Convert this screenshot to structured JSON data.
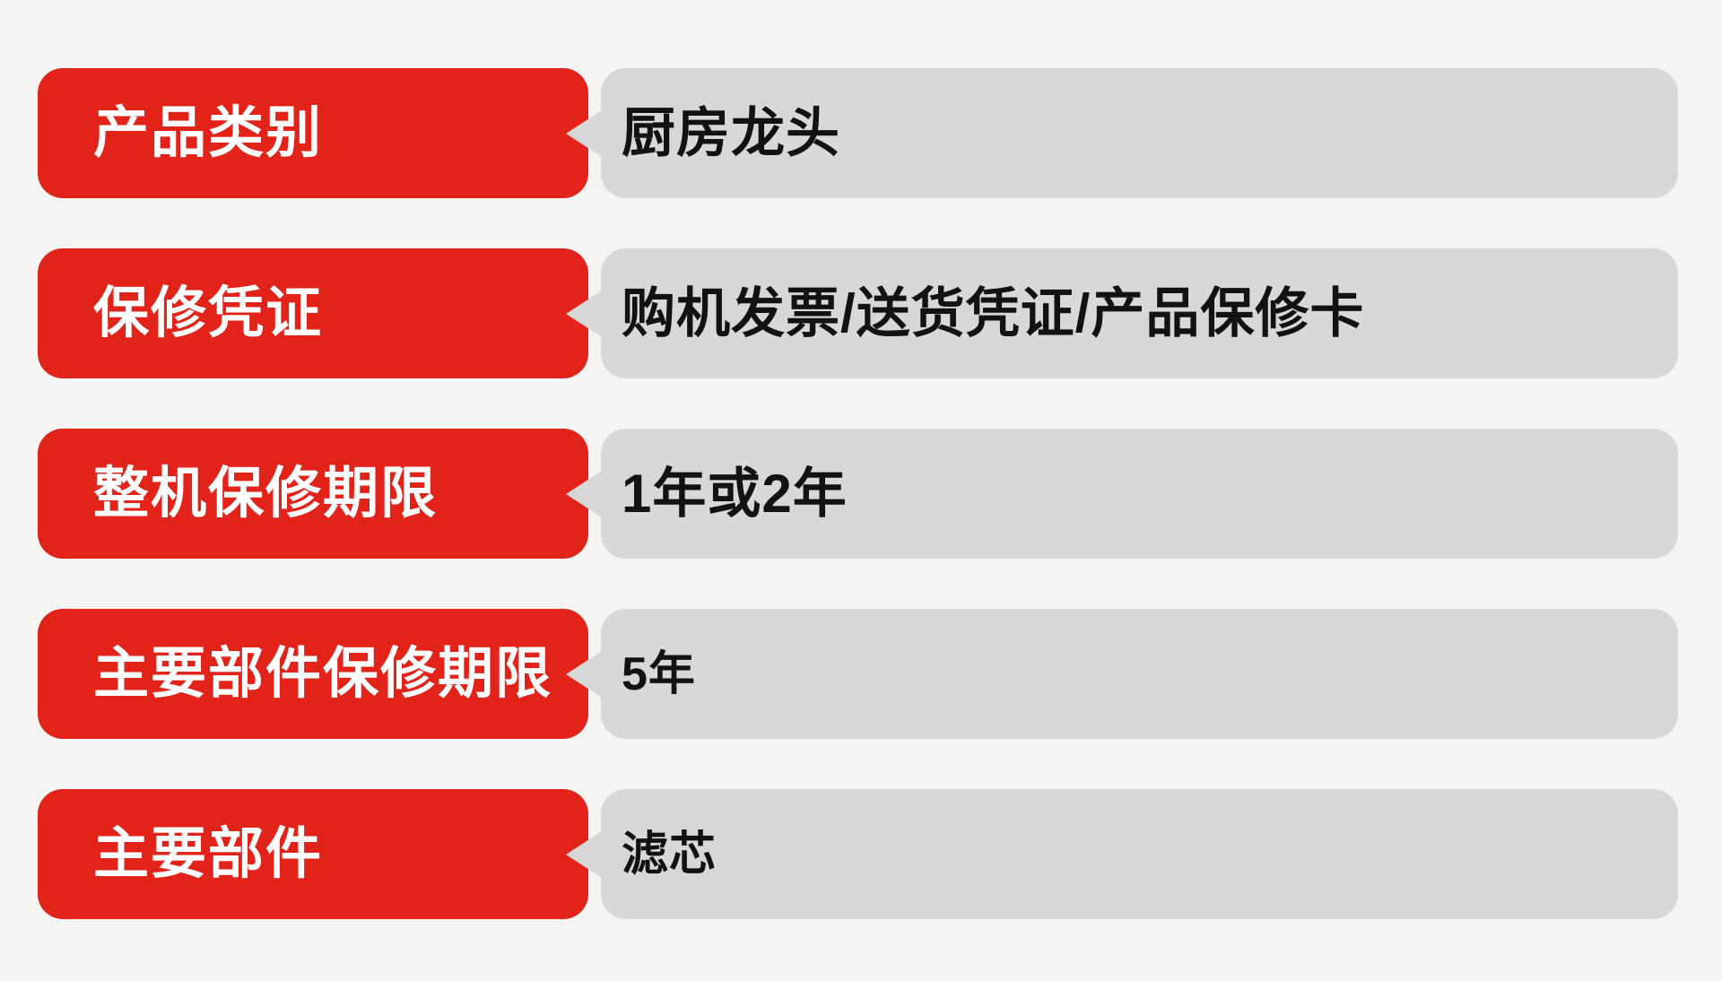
{
  "page": {
    "background_color": "#f5f4f2",
    "label_bubble_color": "#e2231a",
    "value_bubble_color": "#d8d8d8",
    "label_text_color": "#ffffff",
    "value_text_color": "#121212"
  },
  "rows": [
    {
      "label": "产品类别",
      "value": "厨房龙头",
      "value_size": "large"
    },
    {
      "label": "保修凭证",
      "value": "购机发票/送货凭证/产品保修卡",
      "value_size": "large"
    },
    {
      "label": "整机保修期限",
      "value": "1年或2年",
      "value_size": "large"
    },
    {
      "label": "主要部件保修期限",
      "value": "5年",
      "value_size": "small"
    },
    {
      "label": "主要部件",
      "value": "滤芯",
      "value_size": "small"
    }
  ]
}
